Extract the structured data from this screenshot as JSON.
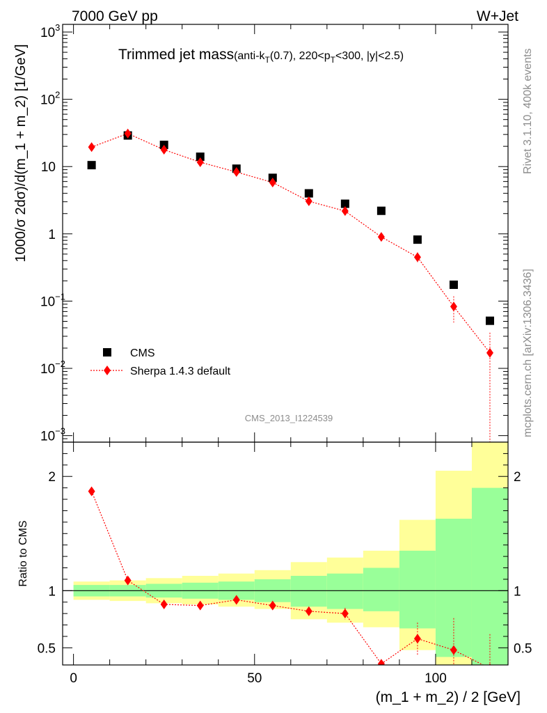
{
  "header": {
    "left": "7000 GeV pp",
    "right": "W+Jet"
  },
  "side": {
    "rivet": "Rivet 3.1.10,  400k events",
    "mcplots": "mcplots.cern.ch [arXiv:1306.3436]"
  },
  "chart_data": [
    {
      "type": "scatter",
      "title_main": "Trimmed jet mass",
      "title_sub": "(anti-k",
      "title_sub_T": "T",
      "title_sub_mid": "(0.7), 220<p",
      "title_sub_T2": "T",
      "title_sub_end": "<300, |y|<2.5)",
      "ylabel": "1000/σ 2dσ)/d(m_1 + m_2) [1/GeV]",
      "xlabel": "(m_1 + m_2) / 2 [GeV]",
      "yscale": "log",
      "ylim": [
        0.0008,
        1300
      ],
      "xlim": [
        -3,
        120
      ],
      "yticks": [
        {
          "base": "10",
          "exp": "3",
          "v": 1000
        },
        {
          "base": "10",
          "exp": "2",
          "v": 100
        },
        {
          "base": "10",
          "exp": "",
          "v": 10
        },
        {
          "base": "1",
          "exp": "",
          "v": 1
        },
        {
          "base": "10",
          "exp": "−1",
          "v": 0.1
        },
        {
          "base": "10",
          "exp": "−2",
          "v": 0.01
        },
        {
          "base": "10",
          "exp": "−3",
          "v": 0.001
        }
      ],
      "watermark": "CMS_2013_I1224539",
      "legend": {
        "position": "bottom-left",
        "entries": [
          "CMS",
          "Sherpa 1.4.3 default"
        ]
      },
      "x": [
        5,
        15,
        25,
        35,
        45,
        55,
        65,
        75,
        85,
        95,
        105,
        115
      ],
      "series": [
        {
          "name": "CMS",
          "marker": "square",
          "color": "#000000",
          "values": [
            10.5,
            29,
            21,
            14,
            9.3,
            6.8,
            4.0,
            2.8,
            2.2,
            0.82,
            0.175,
            0.051
          ]
        },
        {
          "name": "Sherpa 1.4.3 default",
          "marker": "diamond",
          "color": "#ff0000",
          "values": [
            19.5,
            31,
            17.8,
            11.6,
            8.3,
            5.8,
            3.05,
            2.18,
            0.9,
            0.45,
            0.083,
            0.017
          ],
          "err_low": [
            0,
            0,
            0,
            0,
            0,
            0,
            0,
            0,
            0.1,
            0.08,
            0.035,
            0.017
          ],
          "err_high": [
            0,
            0,
            0,
            0,
            0,
            0,
            0,
            0,
            0.1,
            0.08,
            0.035,
            0.017
          ]
        }
      ]
    },
    {
      "type": "scatter",
      "ylabel": "Ratio to CMS",
      "ylim": [
        0.35,
        2.3
      ],
      "xlim": [
        -3,
        120
      ],
      "xticks": [
        "0",
        "50",
        "100"
      ],
      "xtick_values": [
        0,
        50,
        100
      ],
      "yticks": [
        "0.5",
        "1",
        "2"
      ],
      "ytick_values": [
        0.5,
        1,
        2
      ],
      "bin_edges": [
        0,
        10,
        20,
        30,
        40,
        50,
        60,
        70,
        80,
        90,
        100,
        110,
        120
      ],
      "band_yellow_low": [
        0.92,
        0.91,
        0.89,
        0.88,
        0.86,
        0.84,
        0.75,
        0.72,
        0.68,
        0.48,
        0.35,
        0.35
      ],
      "band_yellow_high": [
        1.08,
        1.09,
        1.11,
        1.13,
        1.15,
        1.18,
        1.25,
        1.29,
        1.35,
        1.62,
        2.05,
        2.3
      ],
      "band_green_low": [
        0.95,
        0.95,
        0.94,
        0.93,
        0.92,
        0.9,
        0.86,
        0.84,
        0.82,
        0.67,
        0.42,
        0.35
      ],
      "band_green_high": [
        1.05,
        1.05,
        1.06,
        1.07,
        1.08,
        1.1,
        1.13,
        1.15,
        1.2,
        1.35,
        1.63,
        1.9
      ],
      "x": [
        5,
        15,
        25,
        35,
        45,
        55,
        65,
        75,
        85,
        95,
        105,
        115
      ],
      "series": [
        {
          "name": "Sherpa 1.4.3 default / CMS",
          "marker": "diamond",
          "color": "#ff0000",
          "values": [
            1.87,
            1.09,
            0.88,
            0.87,
            0.92,
            0.87,
            0.82,
            0.8,
            0.36,
            0.58,
            0.48,
            0.32
          ],
          "err_low": [
            0,
            0,
            0,
            0.02,
            0.02,
            0.03,
            0.04,
            0.05,
            0.04,
            0.14,
            0.25,
            0.3
          ],
          "err_high": [
            0,
            0,
            0,
            0.02,
            0.02,
            0.03,
            0.04,
            0.05,
            0.04,
            0.14,
            0.28,
            0.3
          ]
        }
      ]
    }
  ]
}
